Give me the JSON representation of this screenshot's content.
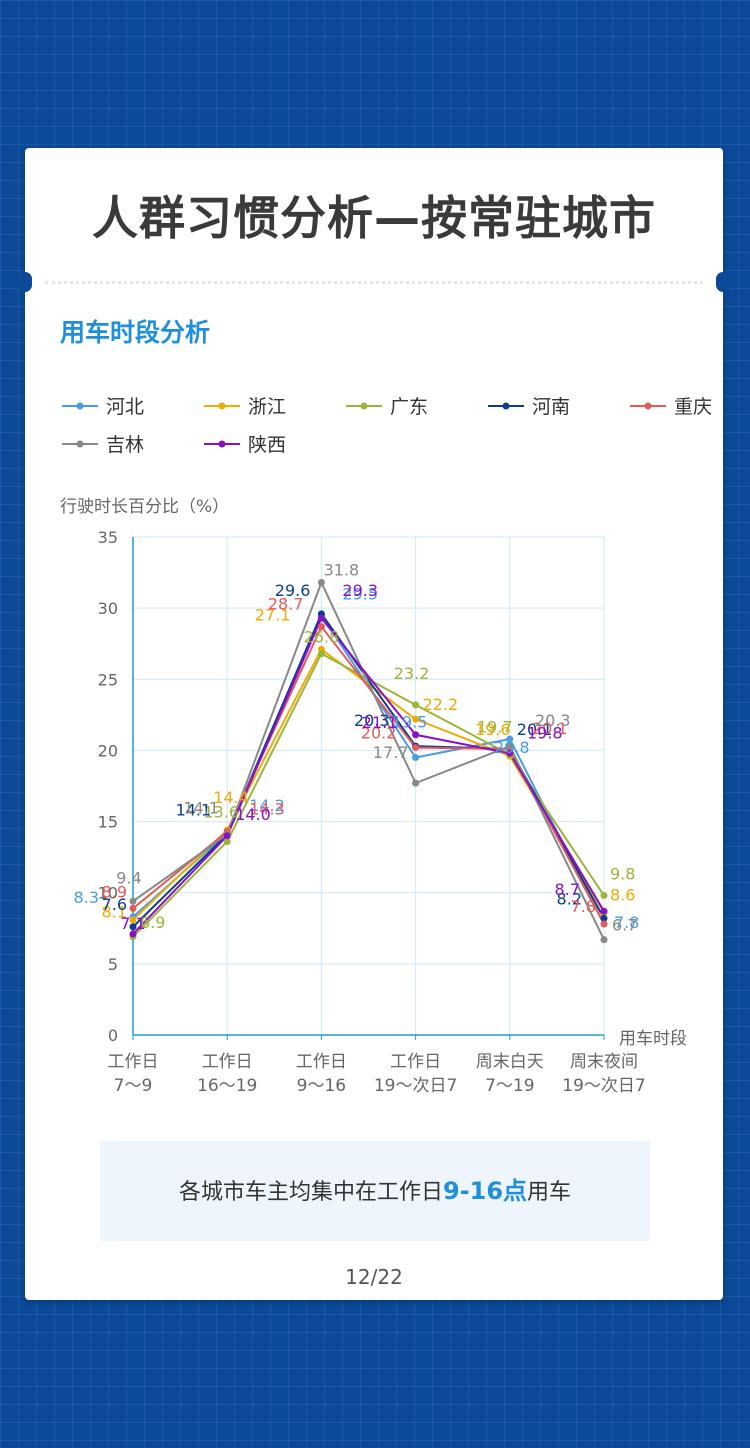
{
  "page": {
    "title": "人群习惯分析—按常驻城市",
    "section_title": "用车时段分析",
    "note_prefix": "各城市车主均集中在工作日",
    "note_highlight": "9-16点",
    "note_suffix": "用车",
    "page_number": "12/22"
  },
  "chart_data": {
    "type": "line",
    "ylabel": "行驶时长百分比（%）",
    "xlabel": "用车时段",
    "ylim": [
      0,
      35
    ],
    "yticks": [
      0,
      5,
      10,
      15,
      20,
      25,
      30,
      35
    ],
    "categories": [
      [
        "工作日",
        "7～9"
      ],
      [
        "工作日",
        "16～19"
      ],
      [
        "工作日",
        "9～16"
      ],
      [
        "工作日",
        "19～次日7"
      ],
      [
        "周末白天",
        "7～19"
      ],
      [
        "周末夜间",
        "19～次日7"
      ]
    ],
    "grid": true,
    "legend_position": "top",
    "series": [
      {
        "name": "河北",
        "color": "#4a9de0",
        "values": [
          8.3,
          14.2,
          29.5,
          19.5,
          20.8,
          7.8
        ]
      },
      {
        "name": "浙江",
        "color": "#f0ab00",
        "values": [
          8.1,
          14.4,
          27.1,
          22.2,
          19.6,
          8.6
        ]
      },
      {
        "name": "广东",
        "color": "#9bb43a",
        "values": [
          6.9,
          13.6,
          26.8,
          23.2,
          19.7,
          9.8
        ]
      },
      {
        "name": "河南",
        "color": "#0b3d8c",
        "values": [
          7.6,
          14.1,
          29.6,
          20.3,
          20.1,
          8.2
        ]
      },
      {
        "name": "重庆",
        "color": "#e45a5a",
        "values": [
          8.9,
          14.3,
          28.7,
          20.2,
          20.1,
          7.8
        ]
      },
      {
        "name": "吉林",
        "color": "#888888",
        "values": [
          9.4,
          14.1,
          31.8,
          17.7,
          20.3,
          6.7
        ]
      },
      {
        "name": "陕西",
        "color": "#8a10c8",
        "values": [
          7.1,
          14.0,
          29.3,
          21.1,
          19.8,
          8.7
        ]
      }
    ]
  }
}
